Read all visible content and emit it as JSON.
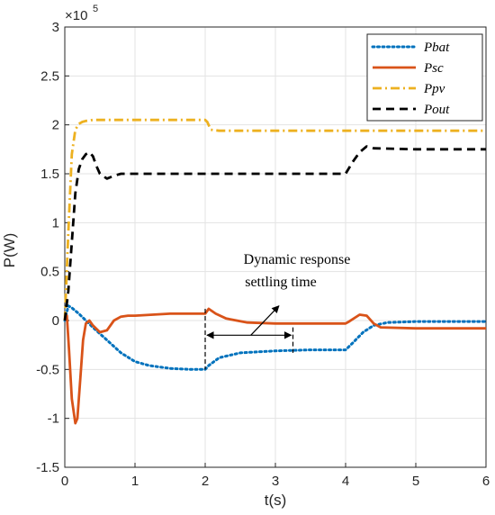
{
  "chart_data": {
    "type": "line",
    "xlabel": "t(s)",
    "ylabel": "P(W)",
    "y_exponent_label": "×10",
    "y_exponent_power": "5",
    "xlim": [
      0,
      6
    ],
    "ylim": [
      -1.5,
      3
    ],
    "x_ticks": [
      "0",
      "1",
      "2",
      "3",
      "4",
      "5",
      "6"
    ],
    "y_ticks": [
      "3",
      "2.5",
      "2",
      "1.5",
      "1",
      "0.5",
      "0",
      "-0.5",
      "-1",
      "-1.5"
    ],
    "grid": true,
    "legend_position": "top-right",
    "colors": {
      "Pbat": "#0072BD",
      "Psc": "#D95319",
      "Ppv": "#EDB120",
      "Pout": "#000000"
    },
    "series": [
      {
        "name": "Pbat",
        "style": "dotted",
        "x": [
          0,
          0.05,
          0.1,
          0.2,
          0.3,
          0.4,
          0.6,
          0.8,
          1.0,
          1.2,
          1.5,
          1.8,
          2.0,
          2.05,
          2.2,
          2.5,
          3.0,
          3.5,
          4.0,
          4.1,
          4.25,
          4.4,
          4.6,
          5.0,
          6.0
        ],
        "y": [
          0.0,
          0.15,
          0.13,
          0.07,
          0.0,
          -0.07,
          -0.2,
          -0.33,
          -0.42,
          -0.46,
          -0.49,
          -0.5,
          -0.5,
          -0.46,
          -0.38,
          -0.33,
          -0.31,
          -0.3,
          -0.3,
          -0.23,
          -0.12,
          -0.05,
          -0.02,
          -0.01,
          -0.01
        ]
      },
      {
        "name": "Psc",
        "style": "solid",
        "x": [
          0,
          0.03,
          0.06,
          0.1,
          0.15,
          0.18,
          0.22,
          0.26,
          0.3,
          0.35,
          0.4,
          0.5,
          0.6,
          0.7,
          0.8,
          0.9,
          1.0,
          1.5,
          2.0,
          2.05,
          2.15,
          2.3,
          2.6,
          3.0,
          3.5,
          4.0,
          4.05,
          4.2,
          4.3,
          4.4,
          4.5,
          5.0,
          6.0
        ],
        "y": [
          0.0,
          0.05,
          -0.3,
          -0.8,
          -1.05,
          -1.0,
          -0.6,
          -0.2,
          -0.03,
          0.0,
          -0.05,
          -0.12,
          -0.1,
          0.0,
          0.04,
          0.05,
          0.05,
          0.07,
          0.07,
          0.12,
          0.07,
          0.02,
          -0.02,
          -0.03,
          -0.03,
          -0.03,
          -0.01,
          0.06,
          0.05,
          -0.03,
          -0.07,
          -0.08,
          -0.08
        ]
      },
      {
        "name": "Ppv",
        "style": "dash-dot",
        "x": [
          0,
          0.05,
          0.1,
          0.15,
          0.2,
          0.25,
          0.3,
          0.4,
          0.6,
          1.0,
          1.5,
          2.0,
          2.03,
          2.08,
          2.2,
          3.0,
          4.0,
          5.0,
          6.0
        ],
        "y": [
          0.0,
          0.9,
          1.7,
          1.95,
          2.01,
          2.03,
          2.04,
          2.05,
          2.05,
          2.05,
          2.05,
          2.05,
          2.03,
          1.95,
          1.94,
          1.94,
          1.94,
          1.94,
          1.94
        ],
        "direction_note": ""
      },
      {
        "name": "Pout",
        "style": "dashed",
        "x": [
          0,
          0.05,
          0.1,
          0.15,
          0.2,
          0.25,
          0.3,
          0.35,
          0.4,
          0.45,
          0.5,
          0.6,
          0.7,
          0.8,
          1.0,
          1.5,
          2.0,
          3.0,
          4.0,
          4.1,
          4.2,
          4.3,
          4.4,
          5.0,
          6.0
        ],
        "y": [
          0.0,
          0.3,
          0.8,
          1.3,
          1.55,
          1.65,
          1.7,
          1.72,
          1.68,
          1.58,
          1.5,
          1.45,
          1.48,
          1.5,
          1.5,
          1.5,
          1.5,
          1.5,
          1.5,
          1.62,
          1.72,
          1.78,
          1.76,
          1.75,
          1.75
        ]
      }
    ],
    "annotation": {
      "line1": "Dynamic response",
      "line2": "settling time",
      "span_x": [
        2.0,
        3.25
      ],
      "span_y": -0.15,
      "arrow_from": [
        2.65,
        -0.15
      ],
      "arrow_to": [
        3.05,
        0.15
      ]
    }
  }
}
